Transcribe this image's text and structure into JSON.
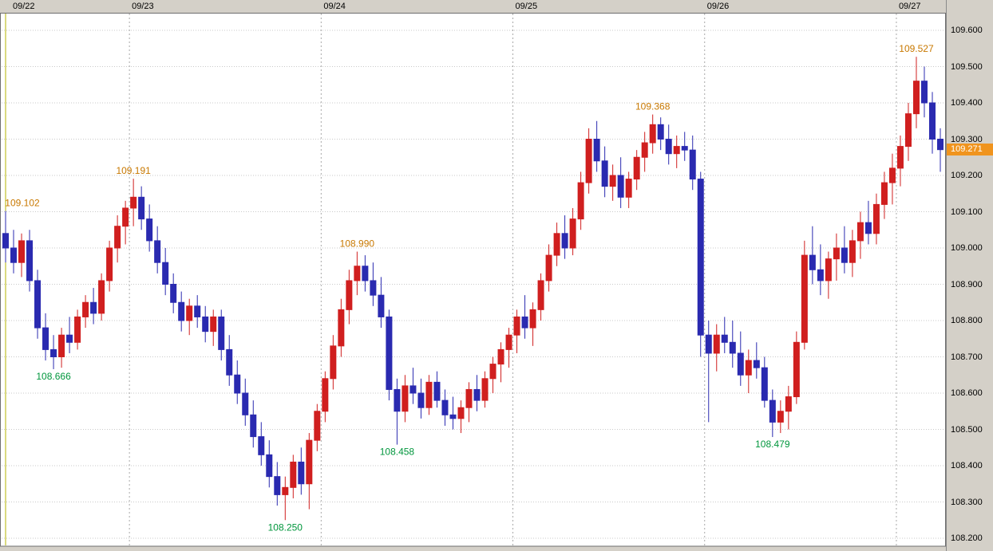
{
  "chart": {
    "colors": {
      "up_candle": "#d01f1f",
      "down_candle": "#2a2ab0",
      "high_label": "#c87800",
      "low_label": "#00963c",
      "grid": "#c9c9c9",
      "day_grid": "#a8a8a8",
      "session_marker": "#b4b400",
      "plot_bg": "#ffffff",
      "frame": "#6e6e6e",
      "axis_bg": "#d4d0c8",
      "badge_bg": "#f0941e",
      "badge_fg": "#ffffff"
    }
  },
  "chart_data": {
    "type": "candlestick",
    "grid": true,
    "ylim": [
      108.178,
      109.646
    ],
    "y_ticks": [
      "109.600",
      "109.500",
      "109.400",
      "109.300",
      "109.200",
      "109.100",
      "109.000",
      "108.900",
      "108.800",
      "108.700",
      "108.600",
      "108.500",
      "108.400",
      "108.300",
      "108.200"
    ],
    "days": [
      {
        "label": "09/22",
        "start_index": 0
      },
      {
        "label": "09/23",
        "start_index": 16
      },
      {
        "label": "09/24",
        "start_index": 40
      },
      {
        "label": "09/25",
        "start_index": 64
      },
      {
        "label": "09/26",
        "start_index": 88
      },
      {
        "label": "09/27",
        "start_index": 112
      }
    ],
    "current_price": 109.271,
    "current_price_label": "109.271",
    "annotations": [
      {
        "text": "109.102",
        "index": 0,
        "price": 109.102,
        "kind": "high"
      },
      {
        "text": "108.666",
        "index": 6,
        "price": 108.666,
        "kind": "low"
      },
      {
        "text": "109.191",
        "index": 16,
        "price": 109.191,
        "kind": "high"
      },
      {
        "text": "108.250",
        "index": 35,
        "price": 108.25,
        "kind": "low"
      },
      {
        "text": "108.990",
        "index": 44,
        "price": 108.99,
        "kind": "high"
      },
      {
        "text": "108.458",
        "index": 49,
        "price": 108.458,
        "kind": "low"
      },
      {
        "text": "109.368",
        "index": 81,
        "price": 109.368,
        "kind": "high"
      },
      {
        "text": "108.479",
        "index": 96,
        "price": 108.479,
        "kind": "low"
      },
      {
        "text": "109.527",
        "index": 114,
        "price": 109.527,
        "kind": "high"
      }
    ],
    "candles": [
      [
        109.04,
        109.102,
        108.96,
        109.0
      ],
      [
        109.0,
        109.05,
        108.93,
        108.96
      ],
      [
        108.96,
        109.04,
        108.92,
        109.02
      ],
      [
        109.02,
        109.05,
        108.88,
        108.91
      ],
      [
        108.91,
        108.94,
        108.75,
        108.78
      ],
      [
        108.78,
        108.82,
        108.69,
        108.72
      ],
      [
        108.72,
        108.76,
        108.666,
        108.7
      ],
      [
        108.7,
        108.78,
        108.67,
        108.76
      ],
      [
        108.76,
        108.81,
        108.71,
        108.74
      ],
      [
        108.74,
        108.83,
        108.72,
        108.81
      ],
      [
        108.81,
        108.87,
        108.78,
        108.85
      ],
      [
        108.85,
        108.89,
        108.79,
        108.82
      ],
      [
        108.82,
        108.93,
        108.8,
        108.91
      ],
      [
        108.91,
        109.02,
        108.88,
        109.0
      ],
      [
        109.0,
        109.09,
        108.96,
        109.06
      ],
      [
        109.06,
        109.13,
        109.01,
        109.11
      ],
      [
        109.11,
        109.191,
        109.06,
        109.14
      ],
      [
        109.14,
        109.17,
        109.05,
        109.08
      ],
      [
        109.08,
        109.12,
        108.99,
        109.02
      ],
      [
        109.02,
        109.06,
        108.93,
        108.96
      ],
      [
        108.96,
        109.0,
        108.87,
        108.9
      ],
      [
        108.9,
        108.93,
        108.82,
        108.85
      ],
      [
        108.85,
        108.88,
        108.77,
        108.8
      ],
      [
        108.8,
        108.86,
        108.76,
        108.84
      ],
      [
        108.84,
        108.87,
        108.78,
        108.81
      ],
      [
        108.81,
        108.84,
        108.74,
        108.77
      ],
      [
        108.77,
        108.83,
        108.73,
        108.81
      ],
      [
        108.81,
        108.83,
        108.69,
        108.72
      ],
      [
        108.72,
        108.76,
        108.62,
        108.65
      ],
      [
        108.65,
        108.69,
        108.57,
        108.6
      ],
      [
        108.6,
        108.64,
        108.51,
        108.54
      ],
      [
        108.54,
        108.58,
        108.45,
        108.48
      ],
      [
        108.48,
        108.52,
        108.4,
        108.43
      ],
      [
        108.43,
        108.47,
        108.34,
        108.37
      ],
      [
        108.37,
        108.41,
        108.29,
        108.32
      ],
      [
        108.32,
        108.37,
        108.25,
        108.34
      ],
      [
        108.34,
        108.43,
        108.31,
        108.41
      ],
      [
        108.41,
        108.45,
        108.32,
        108.35
      ],
      [
        108.35,
        108.49,
        108.28,
        108.47
      ],
      [
        108.47,
        108.57,
        108.44,
        108.55
      ],
      [
        108.55,
        108.66,
        108.52,
        108.64
      ],
      [
        108.64,
        108.76,
        108.61,
        108.73
      ],
      [
        108.73,
        108.86,
        108.7,
        108.83
      ],
      [
        108.83,
        108.94,
        108.79,
        108.91
      ],
      [
        108.91,
        108.99,
        108.87,
        108.95
      ],
      [
        108.95,
        108.98,
        108.88,
        108.91
      ],
      [
        108.91,
        108.96,
        108.84,
        108.87
      ],
      [
        108.87,
        108.92,
        108.78,
        108.81
      ],
      [
        108.81,
        108.83,
        108.58,
        108.61
      ],
      [
        108.61,
        108.64,
        108.458,
        108.55
      ],
      [
        108.55,
        108.65,
        108.52,
        108.62
      ],
      [
        108.62,
        108.67,
        108.57,
        108.6
      ],
      [
        108.6,
        108.64,
        108.53,
        108.56
      ],
      [
        108.56,
        108.65,
        108.54,
        108.63
      ],
      [
        108.63,
        108.66,
        108.56,
        108.58
      ],
      [
        108.58,
        108.61,
        108.51,
        108.54
      ],
      [
        108.54,
        108.59,
        108.5,
        108.53
      ],
      [
        108.53,
        108.58,
        108.49,
        108.56
      ],
      [
        108.56,
        108.63,
        108.52,
        108.61
      ],
      [
        108.61,
        108.65,
        108.55,
        108.58
      ],
      [
        108.58,
        108.66,
        108.56,
        108.64
      ],
      [
        108.64,
        108.7,
        108.6,
        108.68
      ],
      [
        108.68,
        108.74,
        108.63,
        108.72
      ],
      [
        108.72,
        108.78,
        108.67,
        108.76
      ],
      [
        108.76,
        108.83,
        108.71,
        108.81
      ],
      [
        108.81,
        108.87,
        108.75,
        108.78
      ],
      [
        108.78,
        108.85,
        108.73,
        108.83
      ],
      [
        108.83,
        108.93,
        108.8,
        108.91
      ],
      [
        108.91,
        109.01,
        108.88,
        108.98
      ],
      [
        108.98,
        109.07,
        108.95,
        109.04
      ],
      [
        109.04,
        109.09,
        108.97,
        109.0
      ],
      [
        109.0,
        109.11,
        108.98,
        109.08
      ],
      [
        109.08,
        109.21,
        109.05,
        109.18
      ],
      [
        109.18,
        109.33,
        109.15,
        109.3
      ],
      [
        109.3,
        109.35,
        109.21,
        109.24
      ],
      [
        109.24,
        109.28,
        109.14,
        109.17
      ],
      [
        109.17,
        109.23,
        109.13,
        109.2
      ],
      [
        109.2,
        109.25,
        109.11,
        109.14
      ],
      [
        109.14,
        109.21,
        109.11,
        109.19
      ],
      [
        109.19,
        109.27,
        109.16,
        109.25
      ],
      [
        109.25,
        109.32,
        109.21,
        109.29
      ],
      [
        109.29,
        109.368,
        109.26,
        109.34
      ],
      [
        109.34,
        109.36,
        109.27,
        109.3
      ],
      [
        109.3,
        109.34,
        109.23,
        109.26
      ],
      [
        109.26,
        109.31,
        109.22,
        109.28
      ],
      [
        109.28,
        109.32,
        109.24,
        109.27
      ],
      [
        109.27,
        109.31,
        109.16,
        109.19
      ],
      [
        109.19,
        109.21,
        108.7,
        108.76
      ],
      [
        108.76,
        108.8,
        108.52,
        108.71
      ],
      [
        108.71,
        108.79,
        108.66,
        108.76
      ],
      [
        108.76,
        108.81,
        108.71,
        108.74
      ],
      [
        108.74,
        108.8,
        108.67,
        108.71
      ],
      [
        108.71,
        108.77,
        108.62,
        108.65
      ],
      [
        108.65,
        108.72,
        108.6,
        108.69
      ],
      [
        108.69,
        108.74,
        108.64,
        108.67
      ],
      [
        108.67,
        108.7,
        108.56,
        108.58
      ],
      [
        108.58,
        108.61,
        108.479,
        108.52
      ],
      [
        108.52,
        108.58,
        108.49,
        108.55
      ],
      [
        108.55,
        108.62,
        108.5,
        108.59
      ],
      [
        108.59,
        108.77,
        108.57,
        108.74
      ],
      [
        108.74,
        109.02,
        108.72,
        108.98
      ],
      [
        108.98,
        109.06,
        108.9,
        108.94
      ],
      [
        108.94,
        109.01,
        108.87,
        108.91
      ],
      [
        108.91,
        108.99,
        108.86,
        108.97
      ],
      [
        108.97,
        109.04,
        108.91,
        109.0
      ],
      [
        109.0,
        109.06,
        108.93,
        108.96
      ],
      [
        108.96,
        109.05,
        108.92,
        109.02
      ],
      [
        109.02,
        109.1,
        108.97,
        109.07
      ],
      [
        109.07,
        109.13,
        109.01,
        109.04
      ],
      [
        109.04,
        109.15,
        109.01,
        109.12
      ],
      [
        109.12,
        109.21,
        109.08,
        109.18
      ],
      [
        109.18,
        109.26,
        109.12,
        109.22
      ],
      [
        109.22,
        109.31,
        109.17,
        109.28
      ],
      [
        109.28,
        109.4,
        109.24,
        109.37
      ],
      [
        109.37,
        109.527,
        109.33,
        109.46
      ],
      [
        109.46,
        109.5,
        109.36,
        109.4
      ],
      [
        109.4,
        109.43,
        109.26,
        109.3
      ],
      [
        109.3,
        109.33,
        109.21,
        109.271
      ]
    ]
  }
}
